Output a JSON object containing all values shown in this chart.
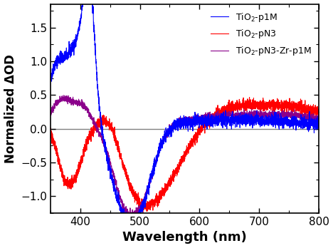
{
  "title": "",
  "xlabel": "Wavelength (nm)",
  "ylabel": "Normalized ΔOD",
  "xlim": [
    350,
    800
  ],
  "ylim": [
    -1.25,
    1.85
  ],
  "yticks": [
    -1.0,
    -0.5,
    0.0,
    0.5,
    1.0,
    1.5
  ],
  "xticks": [
    400,
    500,
    600,
    700,
    800
  ],
  "colors": {
    "blue": "#0000FF",
    "red": "#FF0000",
    "purple": "#8B008B"
  },
  "legend": [
    "TiO$_2$-p1M",
    "TiO$_2$-pN3",
    "TiO$_2$-pN3-Zr-p1M"
  ],
  "background": "#FFFFFF",
  "noise_seed": 42
}
